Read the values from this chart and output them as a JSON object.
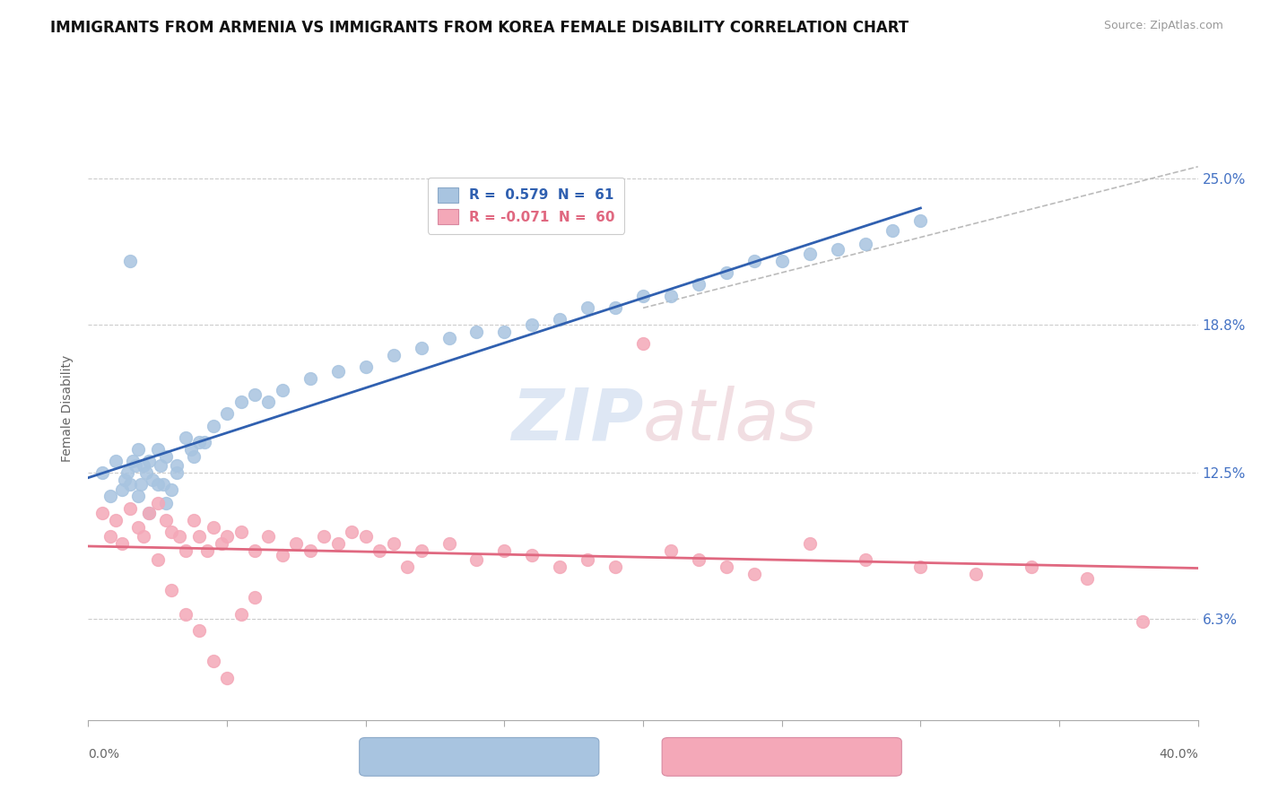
{
  "title": "IMMIGRANTS FROM ARMENIA VS IMMIGRANTS FROM KOREA FEMALE DISABILITY CORRELATION CHART",
  "source": "Source: ZipAtlas.com",
  "ylabel": "Female Disability",
  "y_ticks": [
    0.063,
    0.125,
    0.188,
    0.25
  ],
  "y_tick_labels": [
    "6.3%",
    "12.5%",
    "18.8%",
    "25.0%"
  ],
  "x_min": 0.0,
  "x_max": 0.4,
  "y_min": 0.02,
  "y_max": 0.285,
  "armenia_color": "#a8c4e0",
  "korea_color": "#f4a8b8",
  "armenia_line_color": "#3060b0",
  "korea_line_color": "#e06880",
  "armenia_R": 0.579,
  "armenia_N": 61,
  "korea_R": -0.071,
  "korea_N": 60,
  "armenia_scatter_x": [
    0.005,
    0.008,
    0.01,
    0.012,
    0.013,
    0.014,
    0.015,
    0.016,
    0.017,
    0.018,
    0.019,
    0.02,
    0.021,
    0.022,
    0.023,
    0.025,
    0.026,
    0.027,
    0.028,
    0.03,
    0.032,
    0.035,
    0.037,
    0.04,
    0.045,
    0.05,
    0.055,
    0.06,
    0.065,
    0.07,
    0.08,
    0.09,
    0.1,
    0.11,
    0.12,
    0.13,
    0.14,
    0.15,
    0.16,
    0.17,
    0.18,
    0.19,
    0.2,
    0.21,
    0.22,
    0.23,
    0.24,
    0.25,
    0.26,
    0.27,
    0.28,
    0.29,
    0.3,
    0.015,
    0.018,
    0.022,
    0.025,
    0.028,
    0.032,
    0.038,
    0.042
  ],
  "armenia_scatter_y": [
    0.125,
    0.115,
    0.13,
    0.118,
    0.122,
    0.125,
    0.12,
    0.13,
    0.128,
    0.135,
    0.12,
    0.128,
    0.125,
    0.13,
    0.122,
    0.135,
    0.128,
    0.12,
    0.132,
    0.118,
    0.125,
    0.14,
    0.135,
    0.138,
    0.145,
    0.15,
    0.155,
    0.158,
    0.155,
    0.16,
    0.165,
    0.168,
    0.17,
    0.175,
    0.178,
    0.182,
    0.185,
    0.185,
    0.188,
    0.19,
    0.195,
    0.195,
    0.2,
    0.2,
    0.205,
    0.21,
    0.215,
    0.215,
    0.218,
    0.22,
    0.222,
    0.228,
    0.232,
    0.215,
    0.115,
    0.108,
    0.12,
    0.112,
    0.128,
    0.132,
    0.138
  ],
  "korea_scatter_x": [
    0.005,
    0.008,
    0.01,
    0.012,
    0.015,
    0.018,
    0.02,
    0.022,
    0.025,
    0.028,
    0.03,
    0.033,
    0.035,
    0.038,
    0.04,
    0.043,
    0.045,
    0.048,
    0.05,
    0.055,
    0.06,
    0.065,
    0.07,
    0.075,
    0.08,
    0.085,
    0.09,
    0.095,
    0.1,
    0.105,
    0.11,
    0.115,
    0.12,
    0.13,
    0.14,
    0.15,
    0.16,
    0.17,
    0.18,
    0.19,
    0.2,
    0.21,
    0.22,
    0.23,
    0.24,
    0.26,
    0.28,
    0.3,
    0.32,
    0.34,
    0.36,
    0.38,
    0.025,
    0.03,
    0.035,
    0.04,
    0.045,
    0.05,
    0.055,
    0.06
  ],
  "korea_scatter_y": [
    0.108,
    0.098,
    0.105,
    0.095,
    0.11,
    0.102,
    0.098,
    0.108,
    0.112,
    0.105,
    0.1,
    0.098,
    0.092,
    0.105,
    0.098,
    0.092,
    0.102,
    0.095,
    0.098,
    0.1,
    0.092,
    0.098,
    0.09,
    0.095,
    0.092,
    0.098,
    0.095,
    0.1,
    0.098,
    0.092,
    0.095,
    0.085,
    0.092,
    0.095,
    0.088,
    0.092,
    0.09,
    0.085,
    0.088,
    0.085,
    0.18,
    0.092,
    0.088,
    0.085,
    0.082,
    0.095,
    0.088,
    0.085,
    0.082,
    0.085,
    0.08,
    0.062,
    0.088,
    0.075,
    0.065,
    0.058,
    0.045,
    0.038,
    0.065,
    0.072
  ]
}
